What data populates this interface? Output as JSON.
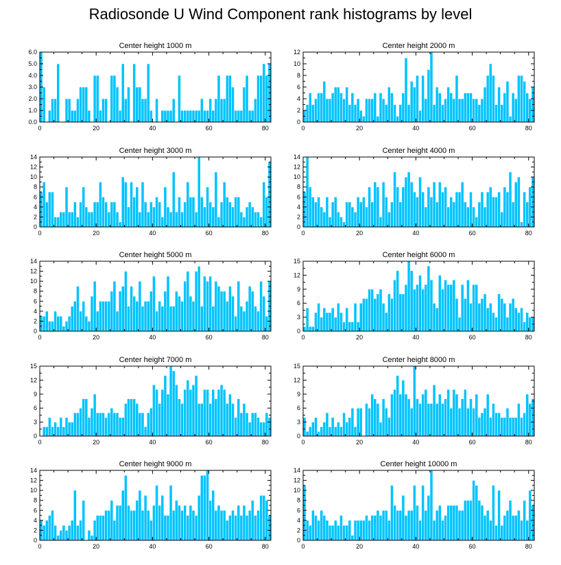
{
  "title": "Radiosonde U Wind Component rank histograms by level",
  "colors": {
    "bar": "#00c3ff",
    "bar_edge": "#ffffff",
    "axis": "#000000"
  },
  "chart_data": [
    {
      "type": "bar",
      "title": "Center height 1000 m",
      "xlim": [
        0,
        82
      ],
      "ylim": [
        0,
        6
      ],
      "xticks": [
        0,
        20,
        40,
        60,
        80
      ],
      "yticks": [
        0,
        1,
        2,
        3,
        4,
        5,
        6
      ],
      "ytick_labels": [
        "0.0",
        "1.0",
        "2.0",
        "3.0",
        "4.0",
        "5.0",
        "6.0"
      ],
      "values": [
        6,
        3,
        0,
        1,
        2,
        2,
        5,
        0,
        0,
        2,
        2,
        1,
        1,
        2,
        3,
        3,
        3,
        1,
        0,
        4,
        4,
        1,
        2,
        2,
        0,
        4,
        4,
        3,
        1,
        5,
        2,
        3,
        0,
        5,
        3,
        3,
        2,
        2,
        5,
        1,
        0,
        2,
        0,
        1,
        1,
        1,
        1,
        2,
        0,
        4,
        1,
        1,
        1,
        1,
        1,
        1,
        1,
        2,
        1,
        1,
        2,
        1,
        2,
        4,
        2,
        2,
        4,
        4,
        3,
        1,
        1,
        1,
        3,
        4,
        1,
        1,
        2,
        4,
        4,
        5,
        4,
        5,
        0
      ]
    },
    {
      "type": "bar",
      "title": "Center height 2000 m",
      "xlim": [
        0,
        82
      ],
      "ylim": [
        0,
        12
      ],
      "xticks": [
        0,
        20,
        40,
        60,
        80
      ],
      "yticks": [
        0,
        2,
        4,
        6,
        8,
        10,
        12
      ],
      "ytick_labels": [
        "0",
        "2",
        "4",
        "6",
        "8",
        "10",
        "12"
      ],
      "values": [
        2,
        3,
        5,
        3,
        4,
        5,
        5,
        7,
        4,
        4,
        5,
        6,
        6,
        5,
        4,
        6,
        3,
        5,
        3,
        4,
        2,
        1,
        4,
        4,
        4,
        5,
        1,
        5,
        4,
        3,
        6,
        5,
        3,
        1,
        3,
        5,
        11,
        3,
        7,
        6,
        8,
        2,
        8,
        4,
        9,
        12,
        3,
        6,
        5,
        3,
        4,
        6,
        5,
        4,
        8,
        4,
        4,
        5,
        5,
        5,
        4,
        4,
        3,
        4,
        6,
        8,
        10,
        8,
        3,
        6,
        3,
        5,
        7,
        1,
        5,
        4,
        8,
        8,
        7,
        5,
        4,
        6,
        0
      ]
    },
    {
      "type": "bar",
      "title": "Center height 3000 m",
      "xlim": [
        0,
        82
      ],
      "ylim": [
        0,
        14
      ],
      "xticks": [
        0,
        20,
        40,
        60,
        80
      ],
      "yticks": [
        0,
        2,
        4,
        6,
        8,
        10,
        12,
        14
      ],
      "ytick_labels": [
        "0",
        "2",
        "4",
        "6",
        "8",
        "10",
        "12",
        "14"
      ],
      "values": [
        7,
        9,
        5,
        7,
        7,
        2,
        2,
        3,
        3,
        8,
        3,
        3,
        5,
        2,
        5,
        8,
        4,
        3,
        3,
        5,
        5,
        9,
        6,
        5,
        3,
        5,
        5,
        3,
        1,
        10,
        9,
        4,
        9,
        6,
        8,
        3,
        9,
        5,
        3,
        5,
        4,
        6,
        5,
        2,
        8,
        4,
        3,
        11,
        3,
        6,
        3,
        5,
        9,
        6,
        6,
        3,
        14,
        6,
        4,
        8,
        5,
        4,
        11,
        2,
        5,
        9,
        6,
        5,
        4,
        6,
        6,
        3,
        2,
        4,
        5,
        4,
        3,
        3,
        2,
        9,
        6,
        13,
        0
      ]
    },
    {
      "type": "bar",
      "title": "Center height 4000 m",
      "xlim": [
        0,
        82
      ],
      "ylim": [
        0,
        14
      ],
      "xticks": [
        0,
        20,
        40,
        60,
        80
      ],
      "yticks": [
        0,
        2,
        4,
        6,
        8,
        10,
        12,
        14
      ],
      "ytick_labels": [
        "0",
        "2",
        "4",
        "6",
        "8",
        "10",
        "12",
        "14"
      ],
      "values": [
        7,
        14,
        8,
        6,
        5,
        6,
        4,
        3,
        6,
        2,
        5,
        6,
        3,
        2,
        1,
        5,
        5,
        4,
        3,
        6,
        5,
        6,
        4,
        8,
        5,
        9,
        8,
        2,
        9,
        6,
        3,
        5,
        11,
        8,
        5,
        8,
        10,
        11,
        9,
        7,
        6,
        10,
        7,
        4,
        8,
        6,
        9,
        5,
        9,
        7,
        8,
        4,
        6,
        5,
        7,
        7,
        9,
        5,
        4,
        7,
        4,
        2,
        5,
        7,
        4,
        7,
        8,
        6,
        6,
        7,
        3,
        8,
        7,
        11,
        5,
        9,
        10,
        1,
        7,
        5,
        8,
        10,
        0
      ]
    },
    {
      "type": "bar",
      "title": "Center height 5000 m",
      "xlim": [
        0,
        82
      ],
      "ylim": [
        0,
        14
      ],
      "xticks": [
        0,
        20,
        40,
        60,
        80
      ],
      "yticks": [
        0,
        2,
        4,
        6,
        8,
        10,
        12,
        14
      ],
      "ytick_labels": [
        "0",
        "2",
        "4",
        "6",
        "8",
        "10",
        "12",
        "14"
      ],
      "values": [
        3,
        3,
        4,
        2,
        2,
        4,
        3,
        3,
        1,
        2,
        3,
        5,
        6,
        9,
        4,
        6,
        3,
        2,
        7,
        10,
        4,
        6,
        6,
        6,
        6,
        8,
        10,
        4,
        8,
        9,
        12,
        5,
        9,
        7,
        6,
        10,
        5,
        6,
        6,
        8,
        11,
        4,
        6,
        5,
        8,
        11,
        5,
        5,
        8,
        7,
        6,
        10,
        12,
        7,
        6,
        12,
        13,
        5,
        11,
        10,
        11,
        5,
        10,
        9,
        8,
        8,
        6,
        9,
        7,
        3,
        10,
        5,
        4,
        6,
        9,
        8,
        5,
        4,
        10,
        7,
        3,
        10,
        0
      ]
    },
    {
      "type": "bar",
      "title": "Center height 6000 m",
      "xlim": [
        0,
        82
      ],
      "ylim": [
        0,
        15
      ],
      "xticks": [
        0,
        20,
        40,
        60,
        80
      ],
      "yticks": [
        0,
        3,
        6,
        9,
        12,
        15
      ],
      "ytick_labels": [
        "0",
        "3",
        "6",
        "9",
        "12",
        "15"
      ],
      "values": [
        1,
        5,
        1,
        1,
        4,
        6,
        3,
        5,
        4,
        4,
        5,
        3,
        6,
        4,
        2,
        5,
        2,
        2,
        6,
        2,
        6,
        7,
        7,
        9,
        9,
        7,
        8,
        9,
        6,
        4,
        8,
        7,
        11,
        13,
        8,
        8,
        10,
        15,
        13,
        9,
        10,
        12,
        9,
        10,
        14,
        11,
        6,
        5,
        12,
        9,
        11,
        10,
        10,
        11,
        7,
        3,
        10,
        7,
        11,
        6,
        10,
        10,
        6,
        7,
        8,
        5,
        6,
        4,
        3,
        8,
        7,
        6,
        3,
        6,
        7,
        5,
        4,
        5,
        2,
        4,
        3,
        3,
        0
      ]
    },
    {
      "type": "bar",
      "title": "Center height 7000 m",
      "xlim": [
        0,
        82
      ],
      "ylim": [
        0,
        15
      ],
      "xticks": [
        0,
        20,
        40,
        60,
        80
      ],
      "yticks": [
        0,
        3,
        6,
        9,
        12,
        15
      ],
      "ytick_labels": [
        "0",
        "3",
        "6",
        "9",
        "12",
        "15"
      ],
      "values": [
        0,
        2,
        2,
        4,
        2,
        3,
        2,
        4,
        2,
        4,
        3,
        3,
        5,
        5,
        6,
        8,
        8,
        4,
        6,
        9,
        5,
        5,
        5,
        4,
        5,
        6,
        5,
        5,
        4,
        4,
        7,
        8,
        8,
        8,
        7,
        5,
        5,
        2,
        5,
        6,
        11,
        10,
        7,
        10,
        13,
        9,
        15,
        14,
        11,
        8,
        7,
        10,
        12,
        10,
        11,
        13,
        7,
        7,
        10,
        10,
        7,
        10,
        8,
        10,
        11,
        10,
        7,
        9,
        7,
        4,
        8,
        5,
        7,
        5,
        3,
        5,
        5,
        4,
        3,
        3,
        5,
        4,
        0
      ]
    },
    {
      "type": "bar",
      "title": "Center height 8000 m",
      "xlim": [
        0,
        82
      ],
      "ylim": [
        0,
        15
      ],
      "xticks": [
        0,
        20,
        40,
        60,
        80
      ],
      "yticks": [
        0,
        3,
        6,
        9,
        12,
        15
      ],
      "ytick_labels": [
        "0",
        "3",
        "6",
        "9",
        "12",
        "15"
      ],
      "values": [
        4,
        1,
        2,
        3,
        4,
        1,
        2,
        3,
        5,
        2,
        4,
        2,
        3,
        2,
        5,
        3,
        4,
        6,
        2,
        6,
        6,
        0,
        7,
        6,
        9,
        8,
        7,
        3,
        8,
        6,
        4,
        9,
        10,
        13,
        9,
        12,
        9,
        8,
        6,
        15,
        8,
        7,
        9,
        10,
        7,
        7,
        11,
        7,
        9,
        7,
        8,
        10,
        6,
        10,
        9,
        6,
        8,
        10,
        6,
        8,
        6,
        9,
        4,
        5,
        6,
        9,
        4,
        7,
        5,
        5,
        4,
        4,
        6,
        4,
        4,
        4,
        7,
        4,
        5,
        9,
        7,
        8,
        0
      ]
    },
    {
      "type": "bar",
      "title": "Center height 9000 m",
      "xlim": [
        0,
        82
      ],
      "ylim": [
        0,
        14
      ],
      "xticks": [
        0,
        20,
        40,
        60,
        80
      ],
      "yticks": [
        0,
        2,
        4,
        6,
        8,
        10,
        12,
        14
      ],
      "ytick_labels": [
        "0",
        "2",
        "4",
        "6",
        "8",
        "10",
        "12",
        "14"
      ],
      "values": [
        4,
        3,
        4,
        5,
        6,
        3,
        1,
        2,
        3,
        2,
        3,
        4,
        10,
        3,
        4,
        8,
        0,
        2,
        1,
        4,
        5,
        5,
        5,
        6,
        6,
        8,
        4,
        7,
        7,
        10,
        13,
        7,
        6,
        6,
        8,
        10,
        6,
        9,
        6,
        4,
        7,
        11,
        7,
        9,
        5,
        5,
        11,
        6,
        8,
        7,
        6,
        7,
        5,
        7,
        6,
        5,
        9,
        13,
        13,
        14,
        8,
        10,
        6,
        7,
        6,
        6,
        4,
        5,
        6,
        5,
        7,
        5,
        7,
        5,
        6,
        8,
        5,
        6,
        9,
        9,
        8,
        5,
        0
      ]
    },
    {
      "type": "bar",
      "title": "Center height 10000 m",
      "xlim": [
        0,
        82
      ],
      "ylim": [
        0,
        14
      ],
      "xticks": [
        0,
        20,
        40,
        60,
        80
      ],
      "yticks": [
        0,
        2,
        4,
        6,
        8,
        10,
        12,
        14
      ],
      "ytick_labels": [
        "0",
        "2",
        "4",
        "6",
        "8",
        "10",
        "12",
        "14"
      ],
      "values": [
        11,
        4,
        3,
        6,
        5,
        4,
        6,
        5,
        4,
        3,
        3,
        4,
        3,
        5,
        3,
        3,
        4,
        1,
        4,
        4,
        4,
        4,
        5,
        4,
        5,
        5,
        6,
        5,
        6,
        6,
        4,
        11,
        7,
        6,
        6,
        9,
        5,
        6,
        6,
        11,
        7,
        4,
        11,
        6,
        9,
        14,
        4,
        6,
        7,
        4,
        5,
        7,
        7,
        7,
        7,
        6,
        6,
        8,
        8,
        8,
        12,
        11,
        8,
        7,
        5,
        6,
        4,
        11,
        3,
        10,
        3,
        5,
        6,
        8,
        5,
        5,
        6,
        4,
        8,
        4,
        10,
        7,
        0
      ]
    }
  ]
}
